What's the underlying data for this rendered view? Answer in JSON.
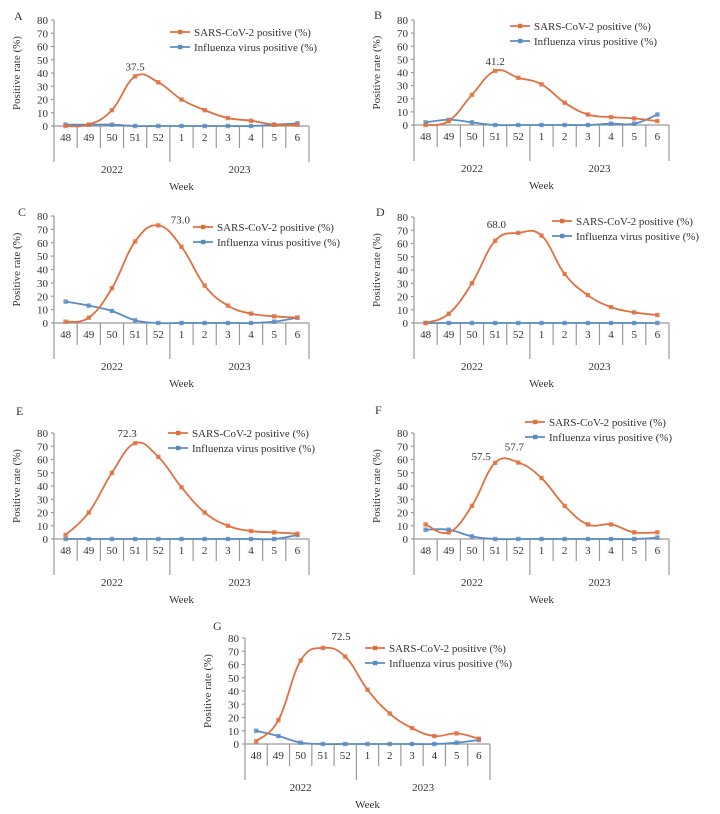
{
  "chart_data": [
    {
      "type": "line",
      "panel": "A",
      "categories": [
        "48",
        "49",
        "50",
        "51",
        "52",
        "1",
        "2",
        "3",
        "4",
        "5",
        "6"
      ],
      "years": [
        {
          "label": "2022",
          "span": [
            0,
            4
          ]
        },
        {
          "label": "2023",
          "span": [
            5,
            10
          ]
        }
      ],
      "xlabel": "Week",
      "ylabel": "Positive rate (%)",
      "ylim": [
        0,
        80
      ],
      "yticks": [
        0,
        10,
        20,
        30,
        40,
        50,
        60,
        70,
        80
      ],
      "legend_position": "top-right",
      "series": [
        {
          "name": "SARS-CoV-2 positive (%)",
          "color": "#e07040",
          "values": [
            0,
            1,
            12,
            37.5,
            33,
            20,
            12,
            6,
            4,
            1,
            1
          ]
        },
        {
          "name": "Influenza virus positive (%)",
          "color": "#5a8cc4",
          "values": [
            1,
            1,
            1,
            0,
            0,
            0,
            0,
            0,
            0,
            1,
            2
          ]
        }
      ],
      "annotations": [
        {
          "text": "37.5",
          "index": 3,
          "series": 0
        }
      ]
    },
    {
      "type": "line",
      "panel": "B",
      "categories": [
        "48",
        "49",
        "50",
        "51",
        "52",
        "1",
        "2",
        "3",
        "4",
        "5",
        "6"
      ],
      "years": [
        {
          "label": "2022",
          "span": [
            0,
            4
          ]
        },
        {
          "label": "2023",
          "span": [
            5,
            10
          ]
        }
      ],
      "xlabel": "Week",
      "ylabel": "Positive rate (%)",
      "ylim": [
        0,
        80
      ],
      "yticks": [
        0,
        10,
        20,
        30,
        40,
        50,
        60,
        70,
        80
      ],
      "legend_position": "top-right",
      "series": [
        {
          "name": "SARS-CoV-2 positive (%)",
          "color": "#e07040",
          "values": [
            0,
            3,
            23,
            41.2,
            36,
            31,
            17,
            8,
            6,
            5,
            3
          ]
        },
        {
          "name": "Influenza virus positive (%)",
          "color": "#5a8cc4",
          "values": [
            2,
            4,
            2,
            0,
            0,
            0,
            0,
            0,
            1,
            1,
            8
          ]
        }
      ],
      "annotations": [
        {
          "text": "41.2",
          "index": 3,
          "series": 0
        }
      ]
    },
    {
      "type": "line",
      "panel": "C",
      "categories": [
        "48",
        "49",
        "50",
        "51",
        "52",
        "1",
        "2",
        "3",
        "4",
        "5",
        "6"
      ],
      "years": [
        {
          "label": "2022",
          "span": [
            0,
            4
          ]
        },
        {
          "label": "2023",
          "span": [
            5,
            10
          ]
        }
      ],
      "xlabel": "Week",
      "ylabel": "Positive rate (%)",
      "ylim": [
        0,
        80
      ],
      "yticks": [
        0,
        10,
        20,
        30,
        40,
        50,
        60,
        70,
        80
      ],
      "legend_position": "top-right",
      "series": [
        {
          "name": "SARS-CoV-2 positive (%)",
          "color": "#e07040",
          "values": [
            1,
            4,
            26,
            61,
            73.0,
            57,
            28,
            13,
            7,
            5,
            4
          ]
        },
        {
          "name": "Influenza virus positive (%)",
          "color": "#5a8cc4",
          "values": [
            16,
            13,
            9,
            2,
            0,
            0,
            0,
            0,
            0,
            1,
            4
          ]
        }
      ],
      "annotations": [
        {
          "text": "73.0",
          "index": 4,
          "series": 0
        }
      ]
    },
    {
      "type": "line",
      "panel": "D",
      "categories": [
        "48",
        "49",
        "50",
        "51",
        "52",
        "1",
        "2",
        "3",
        "4",
        "5",
        "6"
      ],
      "years": [
        {
          "label": "2022",
          "span": [
            0,
            4
          ]
        },
        {
          "label": "2023",
          "span": [
            5,
            10
          ]
        }
      ],
      "xlabel": "Week",
      "ylabel": "Positive rate (%)",
      "ylim": [
        0,
        80
      ],
      "yticks": [
        0,
        10,
        20,
        30,
        40,
        50,
        60,
        70,
        80
      ],
      "legend_position": "top-right",
      "series": [
        {
          "name": "SARS-CoV-2 positive (%)",
          "color": "#e07040",
          "values": [
            0,
            7,
            30,
            62,
            68.0,
            66,
            37,
            21,
            12,
            8,
            6
          ]
        },
        {
          "name": "Influenza virus positive (%)",
          "color": "#5a8cc4",
          "values": [
            0,
            0,
            0,
            0,
            0,
            0,
            0,
            0,
            0,
            0,
            0
          ]
        }
      ],
      "annotations": [
        {
          "text": "68.0",
          "index": 4,
          "series": 0
        }
      ]
    },
    {
      "type": "line",
      "panel": "E",
      "categories": [
        "48",
        "49",
        "50",
        "51",
        "52",
        "1",
        "2",
        "3",
        "4",
        "5",
        "6"
      ],
      "years": [
        {
          "label": "2022",
          "span": [
            0,
            4
          ]
        },
        {
          "label": "2023",
          "span": [
            5,
            10
          ]
        }
      ],
      "xlabel": "Week",
      "ylabel": "Positive rate (%)",
      "ylim": [
        0,
        80
      ],
      "yticks": [
        0,
        10,
        20,
        30,
        40,
        50,
        60,
        70,
        80
      ],
      "legend_position": "top-right",
      "series": [
        {
          "name": "SARS-CoV-2 positive (%)",
          "color": "#e07040",
          "values": [
            3,
            20,
            50,
            72.3,
            62,
            39,
            20,
            10,
            6,
            5,
            4
          ]
        },
        {
          "name": "Influenza virus positive (%)",
          "color": "#5a8cc4",
          "values": [
            0,
            0,
            0,
            0,
            0,
            0,
            0,
            0,
            0,
            0,
            3
          ]
        }
      ],
      "annotations": [
        {
          "text": "72.3",
          "index": 3,
          "series": 0
        }
      ]
    },
    {
      "type": "line",
      "panel": "F",
      "categories": [
        "48",
        "49",
        "50",
        "51",
        "52",
        "1",
        "2",
        "3",
        "4",
        "5",
        "6"
      ],
      "years": [
        {
          "label": "2022",
          "span": [
            0,
            4
          ]
        },
        {
          "label": "2023",
          "span": [
            5,
            10
          ]
        }
      ],
      "xlabel": "Week",
      "ylabel": "Positive rate (%)",
      "ylim": [
        0,
        80
      ],
      "yticks": [
        0,
        10,
        20,
        30,
        40,
        50,
        60,
        70,
        80
      ],
      "legend_position": "top-right",
      "series": [
        {
          "name": "SARS-CoV-2 positive (%)",
          "color": "#e07040",
          "values": [
            11,
            5,
            25,
            57.5,
            57.7,
            46,
            25,
            11,
            11,
            5,
            5
          ]
        },
        {
          "name": "Influenza virus positive (%)",
          "color": "#5a8cc4",
          "values": [
            7,
            7,
            2,
            0,
            0,
            0,
            0,
            0,
            0,
            0,
            1
          ]
        }
      ],
      "annotations": [
        {
          "text": "57.5",
          "index": 3,
          "series": 0
        },
        {
          "text": "57.7",
          "index": 4,
          "series": 0
        }
      ]
    },
    {
      "type": "line",
      "panel": "G",
      "categories": [
        "48",
        "49",
        "50",
        "51",
        "52",
        "1",
        "2",
        "3",
        "4",
        "5",
        "6"
      ],
      "years": [
        {
          "label": "2022",
          "span": [
            0,
            4
          ]
        },
        {
          "label": "2023",
          "span": [
            5,
            10
          ]
        }
      ],
      "xlabel": "Week",
      "ylabel": "Positive rate (%)",
      "ylim": [
        0,
        80
      ],
      "yticks": [
        0,
        10,
        20,
        30,
        40,
        50,
        60,
        70,
        80
      ],
      "legend_position": "top-right",
      "series": [
        {
          "name": "SARS-CoV-2 positive (%)",
          "color": "#e07040",
          "values": [
            2,
            18,
            63,
            72.5,
            66,
            41,
            23,
            12,
            6,
            8,
            4
          ]
        },
        {
          "name": "Influenza virus positive (%)",
          "color": "#5a8cc4",
          "values": [
            10,
            6,
            1,
            0,
            0,
            0,
            0,
            0,
            0,
            1,
            3
          ]
        }
      ],
      "annotations": [
        {
          "text": "72.5",
          "index": 3,
          "series": 0
        }
      ]
    }
  ]
}
